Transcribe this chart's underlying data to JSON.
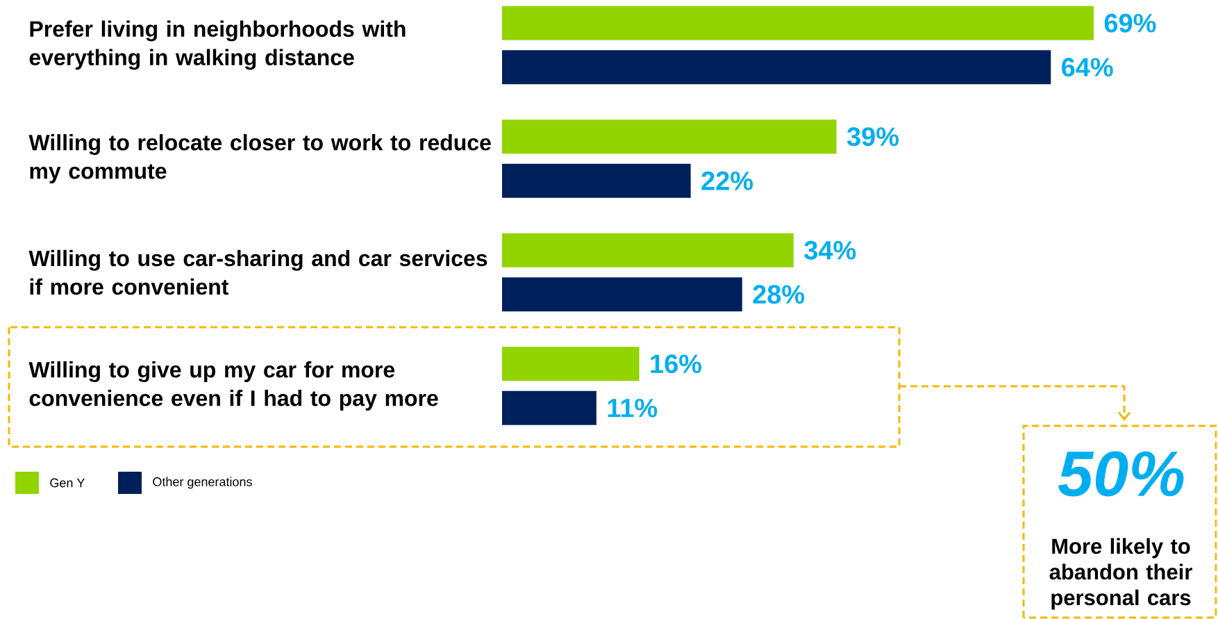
{
  "chart_data": {
    "type": "bar",
    "orientation": "horizontal",
    "categories": [
      "Prefer living in neighborhoods with everything in walking distance",
      "Willing to relocate closer to work to reduce my commute",
      "Willing to use car-sharing and car services if more convenient",
      "Willing to give up my car for more convenience even if I had to pay more"
    ],
    "series": [
      {
        "name": "Gen Y",
        "color": "#92d400",
        "values": [
          69,
          39,
          34,
          16
        ],
        "value_labels": [
          "69%",
          "39%",
          "34%",
          "16%"
        ]
      },
      {
        "name": "Other generations",
        "color": "#00205b",
        "values": [
          64,
          22,
          28,
          11
        ],
        "value_labels": [
          "64%",
          "22%",
          "28%",
          "11%"
        ]
      }
    ],
    "legend": "bottom left",
    "annotations": [
      "50%",
      "More likely to abandon their personal cars"
    ]
  }
}
